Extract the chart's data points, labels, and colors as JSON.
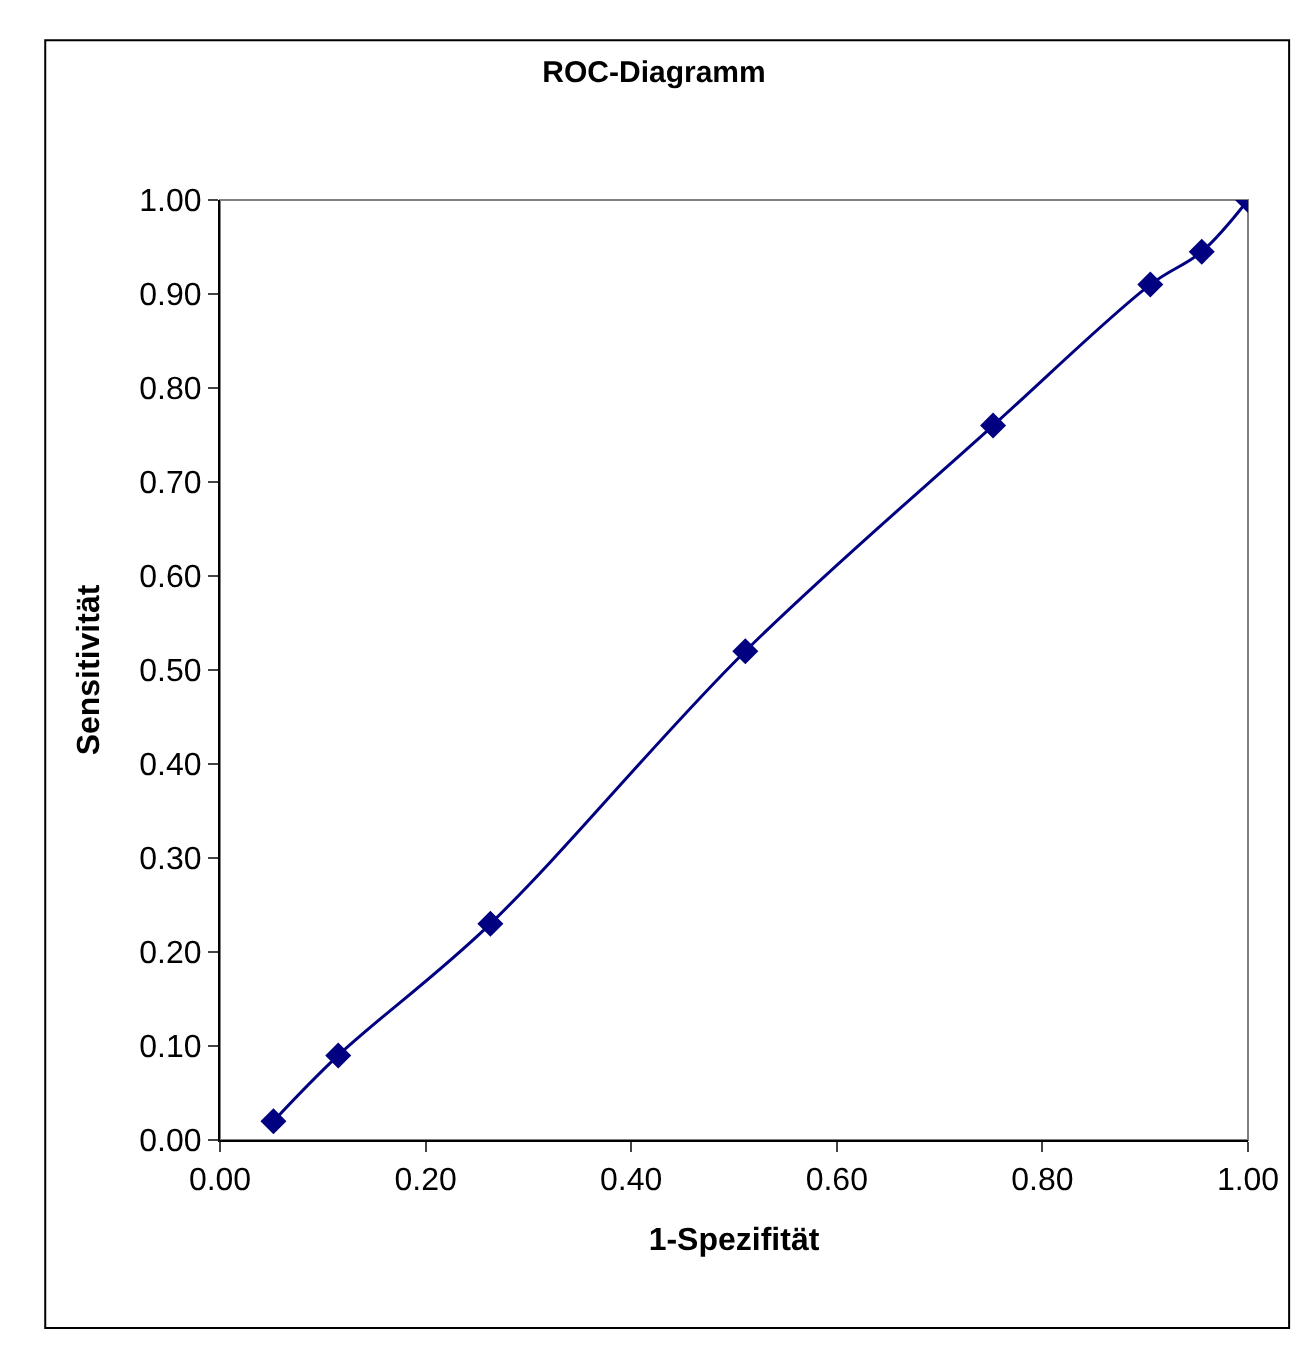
{
  "chart_data": {
    "type": "line",
    "title": "ROC-Diagramm",
    "xlabel": "1-Spezifität",
    "ylabel": "Sensitivität",
    "x": [
      0.052,
      0.115,
      0.263,
      0.511,
      0.752,
      0.905,
      0.955,
      1.0
    ],
    "series": [
      {
        "color": "#000080",
        "values": [
          0.02,
          0.09,
          0.23,
          0.52,
          0.76,
          0.91,
          0.945,
          1.0
        ]
      }
    ],
    "xlim": [
      0,
      1
    ],
    "ylim": [
      0,
      1
    ],
    "xticks": [
      {
        "value": 0,
        "label": "0.00"
      },
      {
        "value": 0.2,
        "label": "0.20"
      },
      {
        "value": 0.4,
        "label": "0.40"
      },
      {
        "value": 0.6,
        "label": "0.60"
      },
      {
        "value": 0.8,
        "label": "0.80"
      },
      {
        "value": 1,
        "label": "1.00"
      }
    ],
    "yticks": [
      {
        "value": 0,
        "label": "0.00"
      },
      {
        "value": 0.1,
        "label": "0.10"
      },
      {
        "value": 0.2,
        "label": "0.20"
      },
      {
        "value": 0.3,
        "label": "0.30"
      },
      {
        "value": 0.4,
        "label": "0.40"
      },
      {
        "value": 0.5,
        "label": "0.50"
      },
      {
        "value": 0.6,
        "label": "0.60"
      },
      {
        "value": 0.7,
        "label": "0.70"
      },
      {
        "value": 0.8,
        "label": "0.80"
      },
      {
        "value": 0.9,
        "label": "0.90"
      },
      {
        "value": 1,
        "label": "1.00"
      }
    ],
    "grid": false,
    "legend": false,
    "marker": "diamond",
    "line_style": "solid"
  }
}
